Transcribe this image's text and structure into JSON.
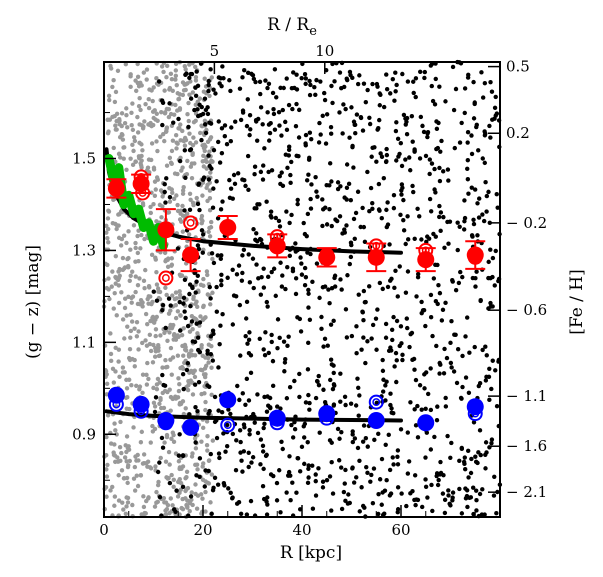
{
  "chart_data": {
    "type": "scatter",
    "title": "",
    "xlabel": "R [kpc]",
    "ylabel": "(g − z) [mag]",
    "top_xlabel": "R / R",
    "top_xlabel_sub": "e",
    "right_ylabel": "[Fe / H]",
    "xlim": [
      0,
      80
    ],
    "ylim": [
      0.72,
      1.71
    ],
    "x_ticks": [
      {
        "value": 0,
        "label": "0"
      },
      {
        "value": 20,
        "label": "20"
      },
      {
        "value": 40,
        "label": "40"
      },
      {
        "value": 60,
        "label": "60"
      }
    ],
    "y_ticks": [
      {
        "value": 0.9,
        "label": "0.9"
      },
      {
        "value": 1.1,
        "label": "1.1"
      },
      {
        "value": 1.3,
        "label": "1.3"
      },
      {
        "value": 1.5,
        "label": "1.5"
      }
    ],
    "top_ticks": [
      {
        "x": 22.3,
        "label": "5"
      },
      {
        "x": 44.6,
        "label": "10"
      }
    ],
    "right_ticks": [
      {
        "color": 1.7,
        "label": "0.5"
      },
      {
        "color": 1.555,
        "label": "0.2"
      },
      {
        "color": 1.36,
        "label": "− 0.2"
      },
      {
        "color": 1.17,
        "label": "− 0.6"
      },
      {
        "color": 0.983,
        "label": "− 1.1"
      },
      {
        "color": 0.874,
        "label": "− 1.6"
      },
      {
        "color": 0.774,
        "label": "− 2.1"
      }
    ],
    "series": [
      {
        "color": "#ff0000",
        "marker": "filled-circle-errorbar",
        "x": [
          2.5,
          7.5,
          12.5,
          17.5,
          25,
          35,
          45,
          55,
          65,
          75
        ],
        "y": [
          1.435,
          1.445,
          1.345,
          1.29,
          1.35,
          1.31,
          1.285,
          1.285,
          1.28,
          1.29
        ],
        "err": [
          0.02,
          0.02,
          0.045,
          0.035,
          0.025,
          0.025,
          0.02,
          0.03,
          0.025,
          0.03
        ]
      },
      {
        "color": "#ff0000",
        "marker": "open-circle",
        "x": [
          2.5,
          7.5,
          7.8,
          12.5,
          17.5,
          25,
          35,
          45,
          55,
          65,
          75
        ],
        "y": [
          1.44,
          1.46,
          1.425,
          1.24,
          1.36,
          1.35,
          1.33,
          1.29,
          1.31,
          1.3,
          1.285
        ]
      },
      {
        "color": "#0000ff",
        "marker": "filled-circle",
        "x": [
          2.5,
          7.5,
          12.5,
          17.5,
          25,
          35,
          45,
          55,
          65,
          75
        ],
        "y": [
          0.985,
          0.965,
          0.93,
          0.915,
          0.975,
          0.935,
          0.945,
          0.93,
          0.925,
          0.96
        ]
      },
      {
        "color": "#0000ff",
        "marker": "open-circle",
        "x": [
          2.5,
          7.5,
          12.5,
          25,
          35,
          45,
          55,
          65,
          75
        ],
        "y": [
          0.965,
          0.95,
          0.925,
          0.92,
          0.925,
          0.935,
          0.97,
          0.925,
          0.945
        ]
      },
      {
        "color": "#00bb00",
        "marker": "thick-line",
        "x": [
          1,
          2,
          3,
          4,
          5,
          6,
          7,
          8,
          9,
          10,
          11,
          12
        ],
        "y": [
          1.5,
          1.45,
          1.48,
          1.4,
          1.42,
          1.38,
          1.39,
          1.35,
          1.36,
          1.32,
          1.35,
          1.31
        ]
      },
      {
        "color": "#000000",
        "marker": "fit-line",
        "x": [
          0.5,
          1,
          2,
          4,
          6,
          10,
          15,
          20,
          30,
          40,
          50,
          60
        ],
        "y": [
          1.52,
          1.47,
          1.43,
          1.39,
          1.37,
          1.345,
          1.33,
          1.32,
          1.31,
          1.303,
          1.298,
          1.295
        ]
      },
      {
        "color": "#000000",
        "marker": "fit-line",
        "x": [
          0.5,
          5,
          10,
          20,
          30,
          40,
          50,
          60
        ],
        "y": [
          0.95,
          0.944,
          0.94,
          0.936,
          0.934,
          0.932,
          0.931,
          0.93
        ]
      }
    ],
    "background_points": {
      "gray_color": "#999999",
      "black_color": "#000000",
      "gray_x_range": [
        0,
        22
      ],
      "black_x_range": [
        10,
        80
      ]
    }
  }
}
